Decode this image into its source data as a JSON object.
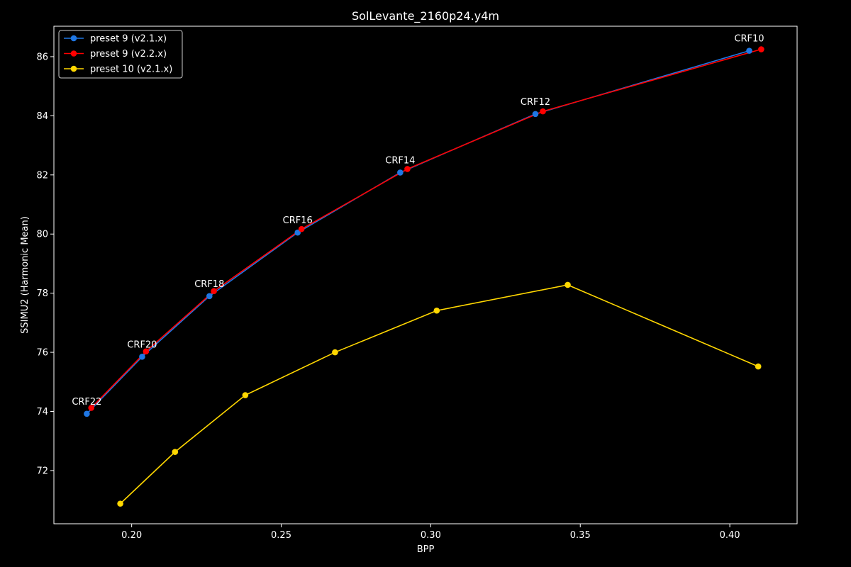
{
  "chart_data": {
    "type": "line",
    "title": "SolLevante_2160p24.y4m",
    "xlabel": "BPP",
    "ylabel": "SSIMU2 (Harmonic Mean)",
    "xlim": [
      0.174,
      0.4225
    ],
    "ylim": [
      70.2,
      87.03
    ],
    "xticks": [
      0.2,
      0.25,
      0.3,
      0.35,
      0.4
    ],
    "xtick_labels": [
      "0.20",
      "0.25",
      "0.30",
      "0.35",
      "0.40"
    ],
    "yticks": [
      72,
      74,
      76,
      78,
      80,
      82,
      84,
      86
    ],
    "ytick_labels": [
      "72",
      "74",
      "76",
      "78",
      "80",
      "82",
      "84",
      "86"
    ],
    "grid": false,
    "legend_position": "top-left",
    "background": "#000000",
    "series": [
      {
        "name": "preset 9 (v2.1.x)",
        "color": "#1f77e4",
        "x": [
          0.185,
          0.2035,
          0.226,
          0.2555,
          0.2898,
          0.335,
          0.4065
        ],
        "y": [
          73.92,
          75.85,
          77.9,
          80.05,
          82.08,
          84.06,
          86.2
        ]
      },
      {
        "name": "preset 9 (v2.2.x)",
        "color": "#ff0000",
        "x": [
          0.1865,
          0.2048,
          0.2275,
          0.2568,
          0.2922,
          0.3375,
          0.4105
        ],
        "y": [
          74.12,
          76.03,
          78.07,
          80.17,
          82.2,
          84.15,
          86.25
        ]
      },
      {
        "name": "preset 10 (v2.1.x)",
        "color": "#ffd700",
        "x": [
          0.1962,
          0.2145,
          0.238,
          0.268,
          0.302,
          0.3458,
          0.4095
        ],
        "y": [
          70.88,
          72.63,
          74.55,
          76.0,
          77.41,
          78.28,
          75.52
        ]
      }
    ],
    "annotations": [
      {
        "text": "CRF22",
        "x": 0.185,
        "y": 73.92
      },
      {
        "text": "CRF20",
        "x": 0.2035,
        "y": 75.85
      },
      {
        "text": "CRF18",
        "x": 0.226,
        "y": 77.9
      },
      {
        "text": "CRF16",
        "x": 0.2555,
        "y": 80.05
      },
      {
        "text": "CRF14",
        "x": 0.2898,
        "y": 82.08
      },
      {
        "text": "CRF12",
        "x": 0.335,
        "y": 84.06
      },
      {
        "text": "CRF10",
        "x": 0.4065,
        "y": 86.2
      }
    ]
  }
}
